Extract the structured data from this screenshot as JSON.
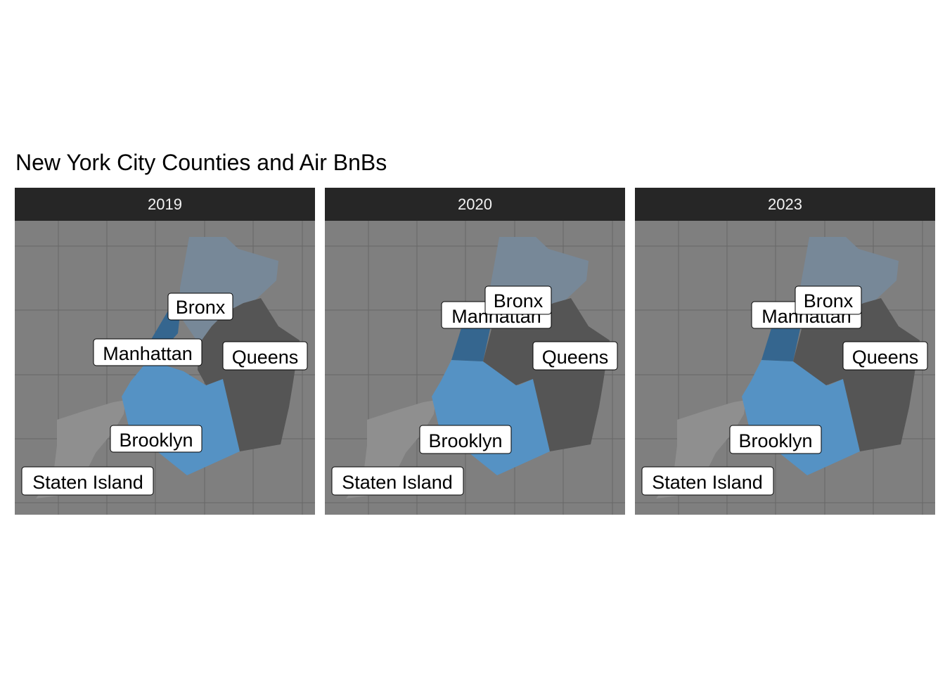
{
  "title": "New York City Counties and Air BnBs",
  "colors": {
    "panel_background": "#7f7f7f",
    "grid_line": "#666666",
    "strip_background": "#262626",
    "strip_text": "#f2f2f2",
    "bronx": "#778898",
    "manhattan": "#35668f",
    "queens": "#555555",
    "brooklyn": "#5592c4",
    "staten_island": "#8f8f8f"
  },
  "panels": [
    {
      "year": "2019",
      "labels": {
        "bronx": "Bronx",
        "manhattan": "Manhattan",
        "queens": "Queens",
        "brooklyn": "Brooklyn",
        "staten_island": "Staten Island"
      }
    },
    {
      "year": "2020",
      "labels": {
        "bronx": "Bronx",
        "manhattan": "Manhattan",
        "queens": "Queens",
        "brooklyn": "Brooklyn",
        "staten_island": "Staten Island"
      }
    },
    {
      "year": "2023",
      "labels": {
        "bronx": "Bronx",
        "manhattan": "Manhattan",
        "queens": "Queens",
        "brooklyn": "Brooklyn",
        "staten_island": "Staten Island"
      }
    }
  ]
}
